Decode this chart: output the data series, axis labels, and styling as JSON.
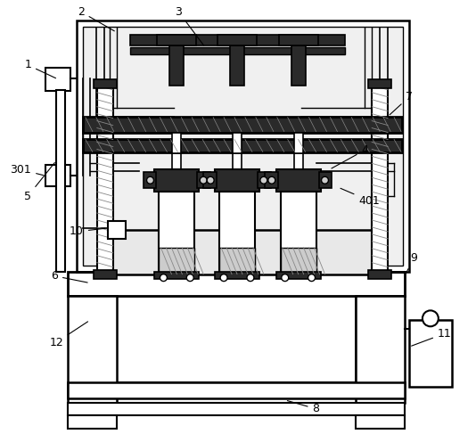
{
  "bg_color": "#ffffff",
  "lc": "#000000",
  "dark": "#2a2a2a",
  "gray": "#888888",
  "lgray": "#cccccc",
  "figsize": [
    5.34,
    4.87
  ],
  "dpi": 100
}
